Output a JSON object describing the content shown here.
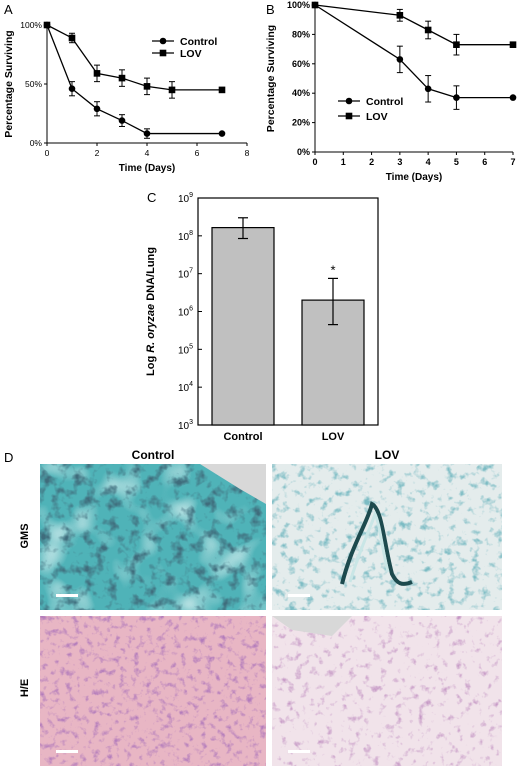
{
  "panels": {
    "a": "A",
    "b": "B",
    "c": "C",
    "d": "D"
  },
  "chart_data": [
    {
      "type": "line",
      "panel": "A",
      "xlabel": "Time (Days)",
      "ylabel": "Percentage Surviving",
      "xlim": [
        0,
        8
      ],
      "ylim": [
        0,
        100
      ],
      "xticks": [
        "0",
        "2",
        "4",
        "6",
        "8"
      ],
      "yticks": [
        "0%",
        "50%",
        "100%"
      ],
      "legend_position": "top-right",
      "series": [
        {
          "name": "Control",
          "marker": "circle",
          "x": [
            0,
            1,
            2,
            3,
            4,
            7
          ],
          "y": [
            100,
            46,
            29,
            19,
            8,
            8
          ],
          "err": [
            0,
            6,
            6,
            5,
            4,
            0
          ]
        },
        {
          "name": "LOV",
          "marker": "square",
          "x": [
            0,
            1,
            2,
            3,
            4,
            5,
            7
          ],
          "y": [
            100,
            89,
            59,
            55,
            48,
            45,
            45
          ],
          "err": [
            0,
            4,
            7,
            7,
            7,
            7,
            0
          ]
        }
      ]
    },
    {
      "type": "line",
      "panel": "B",
      "xlabel": "Time (Days)",
      "ylabel": "Percentage Surviving",
      "xlim": [
        0,
        7
      ],
      "ylim": [
        0,
        100
      ],
      "xticks": [
        "0",
        "1",
        "2",
        "3",
        "4",
        "5",
        "6",
        "7"
      ],
      "yticks": [
        "0%",
        "20%",
        "40%",
        "60%",
        "80%",
        "100%"
      ],
      "legend_position": "bottom-left",
      "series": [
        {
          "name": "Control",
          "marker": "circle",
          "x": [
            0,
            3,
            4,
            5,
            7
          ],
          "y": [
            100,
            63,
            43,
            37,
            37
          ],
          "err": [
            0,
            9,
            9,
            8,
            0
          ]
        },
        {
          "name": "LOV",
          "marker": "square",
          "x": [
            0,
            3,
            4,
            5,
            7
          ],
          "y": [
            100,
            93,
            83,
            73,
            73
          ],
          "err": [
            0,
            4,
            6,
            7,
            0
          ]
        }
      ]
    },
    {
      "type": "bar",
      "panel": "C",
      "ylabel_prefix": "Log ",
      "ylabel_italic": "R. oryzae",
      "ylabel_suffix": " DNA/Lung",
      "yscale": "log",
      "ylim": [
        1000,
        1000000000
      ],
      "ytick_values": [
        1000,
        10000,
        100000,
        1000000,
        10000000,
        100000000,
        1000000000
      ],
      "ytick_base": "10",
      "ytick_exponents": [
        "3",
        "4",
        "5",
        "6",
        "7",
        "8",
        "9"
      ],
      "categories": [
        "Control",
        "LOV"
      ],
      "values": [
        165000000,
        2000000
      ],
      "err_low": [
        85000000,
        450000
      ],
      "err_high": [
        300000000,
        7500000
      ],
      "annotations": [
        "",
        "*"
      ],
      "bar_color": "#c0c0c0"
    }
  ],
  "micrographs": {
    "col_control": "Control",
    "col_lov": "LOV",
    "row_gms": "GMS",
    "row_he": "H/E"
  }
}
